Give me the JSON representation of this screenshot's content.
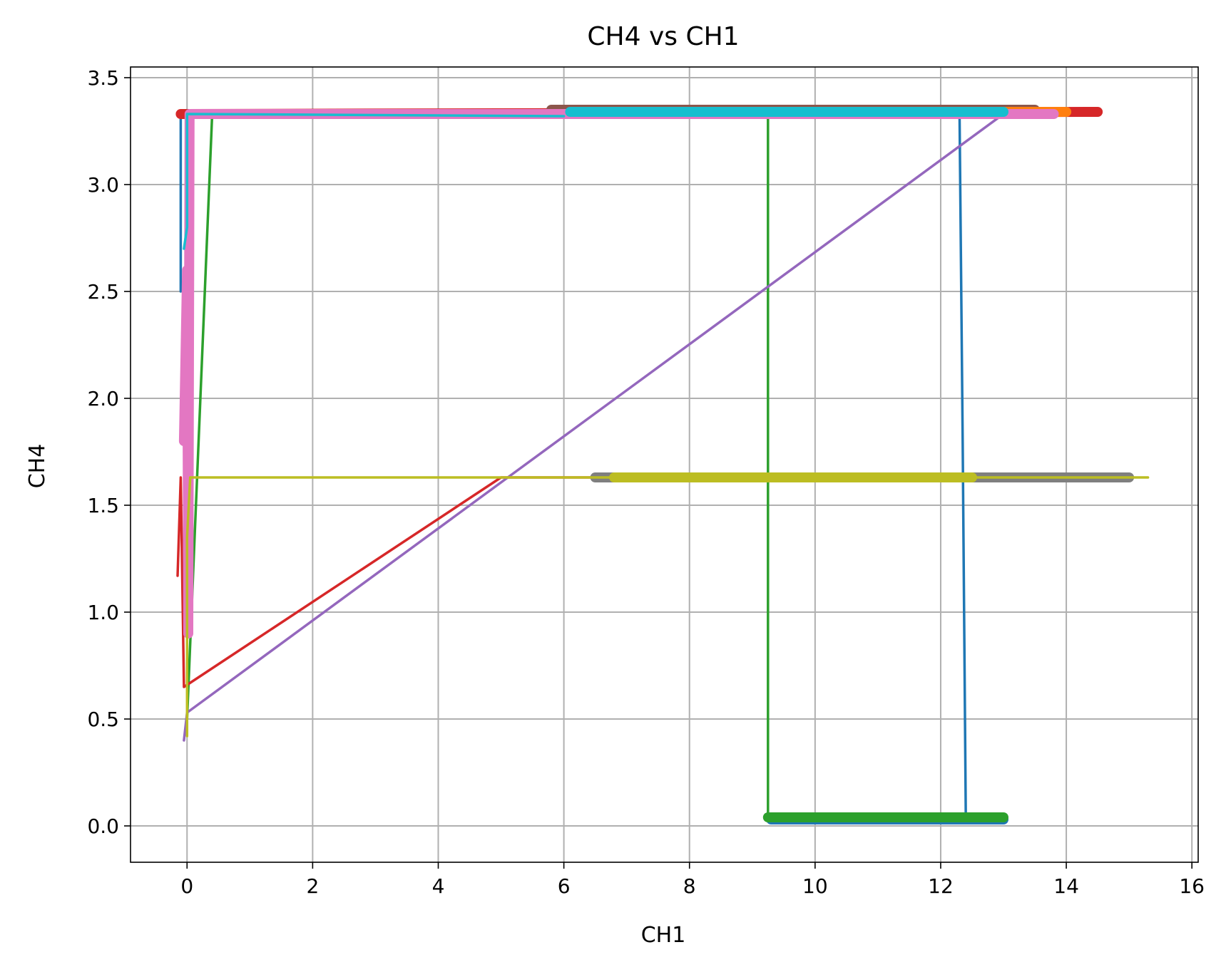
{
  "chart_data": {
    "type": "line",
    "title": "CH4 vs CH1",
    "xlabel": "CH1",
    "ylabel": "CH4",
    "xlim": [
      -0.9,
      16.1
    ],
    "ylim": [
      -0.17,
      3.55
    ],
    "grid": true,
    "xticks": [
      {
        "value": 0,
        "label": "0"
      },
      {
        "value": 2,
        "label": "2"
      },
      {
        "value": 4,
        "label": "4"
      },
      {
        "value": 6,
        "label": "6"
      },
      {
        "value": 8,
        "label": "8"
      },
      {
        "value": 10,
        "label": "10"
      },
      {
        "value": 12,
        "label": "12"
      },
      {
        "value": 14,
        "label": "14"
      },
      {
        "value": 16,
        "label": "16"
      }
    ],
    "yticks": [
      {
        "value": 0.0,
        "label": "0.0"
      },
      {
        "value": 0.5,
        "label": "0.5"
      },
      {
        "value": 1.0,
        "label": "1.0"
      },
      {
        "value": 1.5,
        "label": "1.5"
      },
      {
        "value": 2.0,
        "label": "2.0"
      },
      {
        "value": 2.5,
        "label": "2.5"
      },
      {
        "value": 3.0,
        "label": "3.0"
      },
      {
        "value": 3.5,
        "label": "3.5"
      }
    ],
    "series": [
      {
        "color": "#1f77b4",
        "thick": false,
        "x": [
          -0.1,
          -0.1,
          0.0,
          5.0,
          12.3,
          12.35,
          12.4
        ],
        "y": [
          2.5,
          3.33,
          3.33,
          3.32,
          3.33,
          1.8,
          0.03
        ]
      },
      {
        "color": "#1f77b4",
        "thick": true,
        "x": [
          9.3,
          13.0
        ],
        "y": [
          0.03,
          0.03
        ]
      },
      {
        "color": "#2ca02c",
        "thick": false,
        "x": [
          0.0,
          0.4,
          9.25,
          9.25,
          9.3
        ],
        "y": [
          0.5,
          3.33,
          3.33,
          0.05,
          0.03
        ]
      },
      {
        "color": "#2ca02c",
        "thick": true,
        "x": [
          9.25,
          13.0
        ],
        "y": [
          0.04,
          0.04
        ]
      },
      {
        "color": "#d62728",
        "thick": false,
        "x": [
          -0.15,
          -0.1,
          -0.05,
          5.0,
          15.0
        ],
        "y": [
          1.17,
          1.63,
          0.65,
          1.63,
          1.63
        ]
      },
      {
        "color": "#d62728",
        "thick": true,
        "x": [
          -0.1,
          0.0,
          14.5
        ],
        "y": [
          3.33,
          3.33,
          3.34
        ]
      },
      {
        "color": "#9467bd",
        "thick": false,
        "x": [
          -0.05,
          0.0,
          13.0
        ],
        "y": [
          0.4,
          0.53,
          3.33
        ]
      },
      {
        "color": "#8c564b",
        "thick": true,
        "x": [
          5.8,
          13.5
        ],
        "y": [
          3.35,
          3.35
        ]
      },
      {
        "color": "#ff7f0e",
        "thick": true,
        "x": [
          12.0,
          14.0
        ],
        "y": [
          3.34,
          3.34
        ]
      },
      {
        "color": "#e377c2",
        "thick": true,
        "x": [
          -0.05,
          0.0,
          0.02,
          0.04,
          13.8
        ],
        "y": [
          1.8,
          2.6,
          0.9,
          3.33,
          3.33
        ]
      },
      {
        "color": "#7f7f7f",
        "thick": true,
        "x": [
          6.5,
          15.0
        ],
        "y": [
          1.63,
          1.63
        ]
      },
      {
        "color": "#bcbd22",
        "thick": false,
        "x": [
          0.0,
          0.0,
          0.05,
          15.3
        ],
        "y": [
          0.42,
          1.35,
          1.63,
          1.63
        ]
      },
      {
        "color": "#bcbd22",
        "thick": true,
        "x": [
          6.8,
          12.5
        ],
        "y": [
          1.63,
          1.63
        ]
      },
      {
        "color": "#17becf",
        "thick": false,
        "x": [
          -0.05,
          0.0,
          0.0,
          6.0
        ],
        "y": [
          2.7,
          2.8,
          3.33,
          3.32
        ]
      },
      {
        "color": "#17becf",
        "thick": true,
        "x": [
          6.1,
          13.0
        ],
        "y": [
          3.34,
          3.34
        ]
      }
    ]
  }
}
